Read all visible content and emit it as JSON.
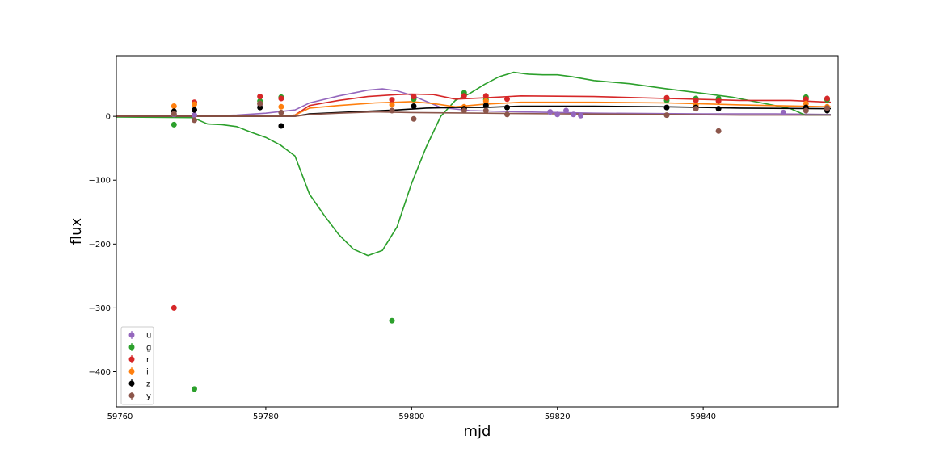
{
  "chart_data": {
    "type": "scatter",
    "title": "",
    "xlabel": "mjd",
    "ylabel": "flux",
    "xlim": [
      59759.5,
      59858.5
    ],
    "ylim": [
      -455,
      95
    ],
    "xticks": [
      59760,
      59780,
      59800,
      59820,
      59840
    ],
    "yticks": [
      -400,
      -300,
      -200,
      -100,
      0
    ],
    "grid": false,
    "legend_position": "lower-left",
    "series": [
      {
        "name": "u",
        "color": "#9467bd",
        "points": [
          {
            "x": 59767.4,
            "y": 3
          },
          {
            "x": 59770.2,
            "y": 2
          },
          {
            "x": 59779.2,
            "y": 19
          },
          {
            "x": 59819.0,
            "y": 7
          },
          {
            "x": 59820.0,
            "y": 3
          },
          {
            "x": 59821.2,
            "y": 9
          },
          {
            "x": 59822.2,
            "y": 3
          },
          {
            "x": 59823.2,
            "y": 1
          },
          {
            "x": 59851.0,
            "y": 6
          }
        ],
        "curve": [
          {
            "x": 59759.5,
            "y": 0
          },
          {
            "x": 59772,
            "y": 0.5
          },
          {
            "x": 59776,
            "y": 2
          },
          {
            "x": 59780,
            "y": 5
          },
          {
            "x": 59784,
            "y": 10
          },
          {
            "x": 59786,
            "y": 21
          },
          {
            "x": 59790,
            "y": 32
          },
          {
            "x": 59794,
            "y": 41
          },
          {
            "x": 59796,
            "y": 43
          },
          {
            "x": 59798,
            "y": 40
          },
          {
            "x": 59800,
            "y": 33
          },
          {
            "x": 59804,
            "y": 14
          },
          {
            "x": 59808,
            "y": 9
          },
          {
            "x": 59815,
            "y": 7
          },
          {
            "x": 59825,
            "y": 5
          },
          {
            "x": 59840,
            "y": 4
          },
          {
            "x": 59850,
            "y": 4
          },
          {
            "x": 59857.5,
            "y": 3
          }
        ]
      },
      {
        "name": "g",
        "color": "#2ca02c",
        "points": [
          {
            "x": 59767.4,
            "y": -13
          },
          {
            "x": 59770.2,
            "y": -427
          },
          {
            "x": 59779.2,
            "y": 24
          },
          {
            "x": 59782.1,
            "y": 30
          },
          {
            "x": 59797.3,
            "y": -320
          },
          {
            "x": 59800.3,
            "y": 27
          },
          {
            "x": 59807.2,
            "y": 37
          },
          {
            "x": 59810.2,
            "y": 26
          },
          {
            "x": 59835.0,
            "y": 25
          },
          {
            "x": 59839.0,
            "y": 28
          },
          {
            "x": 59842.1,
            "y": 28
          },
          {
            "x": 59854.1,
            "y": 30
          },
          {
            "x": 59857.0,
            "y": 26
          }
        ],
        "curve": [
          {
            "x": 59759.5,
            "y": -1
          },
          {
            "x": 59770,
            "y": -2
          },
          {
            "x": 59772,
            "y": -12
          },
          {
            "x": 59774,
            "y": -13
          },
          {
            "x": 59776,
            "y": -16
          },
          {
            "x": 59778,
            "y": -25
          },
          {
            "x": 59780,
            "y": -33
          },
          {
            "x": 59782,
            "y": -45
          },
          {
            "x": 59784,
            "y": -62
          },
          {
            "x": 59786,
            "y": -122
          },
          {
            "x": 59788,
            "y": -155
          },
          {
            "x": 59790,
            "y": -185
          },
          {
            "x": 59792,
            "y": -208
          },
          {
            "x": 59794,
            "y": -218
          },
          {
            "x": 59796,
            "y": -210
          },
          {
            "x": 59798,
            "y": -173
          },
          {
            "x": 59800,
            "y": -105
          },
          {
            "x": 59802,
            "y": -48
          },
          {
            "x": 59804,
            "y": 0
          },
          {
            "x": 59806,
            "y": 25
          },
          {
            "x": 59808,
            "y": 36
          },
          {
            "x": 59810,
            "y": 50
          },
          {
            "x": 59812,
            "y": 62
          },
          {
            "x": 59814,
            "y": 69
          },
          {
            "x": 59816,
            "y": 66
          },
          {
            "x": 59818,
            "y": 65
          },
          {
            "x": 59820,
            "y": 65
          },
          {
            "x": 59822,
            "y": 62
          },
          {
            "x": 59825,
            "y": 56
          },
          {
            "x": 59830,
            "y": 51
          },
          {
            "x": 59835,
            "y": 43
          },
          {
            "x": 59840,
            "y": 36
          },
          {
            "x": 59844,
            "y": 30
          },
          {
            "x": 59848,
            "y": 21
          },
          {
            "x": 59852,
            "y": 12
          },
          {
            "x": 59854,
            "y": 2
          },
          {
            "x": 59857.5,
            "y": 2
          }
        ]
      },
      {
        "name": "r",
        "color": "#d62728",
        "points": [
          {
            "x": 59767.4,
            "y": -300
          },
          {
            "x": 59770.2,
            "y": 22
          },
          {
            "x": 59779.2,
            "y": 31
          },
          {
            "x": 59782.1,
            "y": 28
          },
          {
            "x": 59797.3,
            "y": 26
          },
          {
            "x": 59800.3,
            "y": 31
          },
          {
            "x": 59807.2,
            "y": 32
          },
          {
            "x": 59810.2,
            "y": 32
          },
          {
            "x": 59813.1,
            "y": 27
          },
          {
            "x": 59835.0,
            "y": 29
          },
          {
            "x": 59839.0,
            "y": 25
          },
          {
            "x": 59842.1,
            "y": 24
          },
          {
            "x": 59854.1,
            "y": 27
          },
          {
            "x": 59857.0,
            "y": 28
          }
        ],
        "curve": [
          {
            "x": 59759.5,
            "y": 0
          },
          {
            "x": 59776,
            "y": 0
          },
          {
            "x": 59782,
            "y": 0
          },
          {
            "x": 59784,
            "y": 2
          },
          {
            "x": 59786,
            "y": 17
          },
          {
            "x": 59790,
            "y": 25
          },
          {
            "x": 59794,
            "y": 31
          },
          {
            "x": 59798,
            "y": 34
          },
          {
            "x": 59800,
            "y": 35
          },
          {
            "x": 59803,
            "y": 34
          },
          {
            "x": 59806,
            "y": 27
          },
          {
            "x": 59810,
            "y": 29
          },
          {
            "x": 59815,
            "y": 32
          },
          {
            "x": 59825,
            "y": 31
          },
          {
            "x": 59835,
            "y": 28
          },
          {
            "x": 59845,
            "y": 25
          },
          {
            "x": 59852,
            "y": 25
          },
          {
            "x": 59857.5,
            "y": 22
          }
        ]
      },
      {
        "name": "i",
        "color": "#ff7f0e",
        "points": [
          {
            "x": 59767.4,
            "y": 16
          },
          {
            "x": 59770.2,
            "y": 19
          },
          {
            "x": 59779.2,
            "y": 20
          },
          {
            "x": 59782.1,
            "y": 15
          },
          {
            "x": 59797.3,
            "y": 18
          },
          {
            "x": 59807.2,
            "y": 15
          },
          {
            "x": 59810.2,
            "y": 24
          },
          {
            "x": 59839.0,
            "y": 17
          },
          {
            "x": 59854.1,
            "y": 20
          },
          {
            "x": 59857.0,
            "y": 15
          }
        ],
        "curve": [
          {
            "x": 59759.5,
            "y": 0
          },
          {
            "x": 59782,
            "y": 0
          },
          {
            "x": 59784,
            "y": 2
          },
          {
            "x": 59786,
            "y": 13
          },
          {
            "x": 59790,
            "y": 17
          },
          {
            "x": 59795,
            "y": 21
          },
          {
            "x": 59800,
            "y": 23
          },
          {
            "x": 59803,
            "y": 20
          },
          {
            "x": 59806,
            "y": 15
          },
          {
            "x": 59810,
            "y": 19
          },
          {
            "x": 59815,
            "y": 22
          },
          {
            "x": 59825,
            "y": 22
          },
          {
            "x": 59835,
            "y": 21
          },
          {
            "x": 59845,
            "y": 18
          },
          {
            "x": 59857.5,
            "y": 15
          }
        ]
      },
      {
        "name": "z",
        "color": "#000000",
        "points": [
          {
            "x": 59767.4,
            "y": 8
          },
          {
            "x": 59770.2,
            "y": 10
          },
          {
            "x": 59779.2,
            "y": 14
          },
          {
            "x": 59782.1,
            "y": -15
          },
          {
            "x": 59800.3,
            "y": 16
          },
          {
            "x": 59807.2,
            "y": 12
          },
          {
            "x": 59810.2,
            "y": 17
          },
          {
            "x": 59813.1,
            "y": 14
          },
          {
            "x": 59835.0,
            "y": 14
          },
          {
            "x": 59839.0,
            "y": 14
          },
          {
            "x": 59842.1,
            "y": 12
          },
          {
            "x": 59854.1,
            "y": 14
          },
          {
            "x": 59857.0,
            "y": 9
          }
        ],
        "curve": [
          {
            "x": 59759.5,
            "y": 0
          },
          {
            "x": 59784,
            "y": 0
          },
          {
            "x": 59786,
            "y": 4
          },
          {
            "x": 59792,
            "y": 7
          },
          {
            "x": 59798,
            "y": 10
          },
          {
            "x": 59802,
            "y": 13
          },
          {
            "x": 59806,
            "y": 14
          },
          {
            "x": 59810,
            "y": 14
          },
          {
            "x": 59815,
            "y": 16
          },
          {
            "x": 59825,
            "y": 16
          },
          {
            "x": 59835,
            "y": 15
          },
          {
            "x": 59845,
            "y": 13
          },
          {
            "x": 59857.5,
            "y": 12
          }
        ]
      },
      {
        "name": "y",
        "color": "#8c564b",
        "points": [
          {
            "x": 59767.4,
            "y": 4
          },
          {
            "x": 59770.2,
            "y": -6
          },
          {
            "x": 59779.2,
            "y": 20
          },
          {
            "x": 59782.1,
            "y": 6
          },
          {
            "x": 59797.3,
            "y": 9
          },
          {
            "x": 59800.3,
            "y": -4
          },
          {
            "x": 59807.2,
            "y": 9
          },
          {
            "x": 59810.2,
            "y": 9
          },
          {
            "x": 59813.1,
            "y": 3
          },
          {
            "x": 59835.0,
            "y": 2
          },
          {
            "x": 59839.0,
            "y": 12
          },
          {
            "x": 59842.1,
            "y": -23
          },
          {
            "x": 59854.1,
            "y": 9
          },
          {
            "x": 59857.0,
            "y": 13
          }
        ],
        "curve": [
          {
            "x": 59759.5,
            "y": 0
          },
          {
            "x": 59784,
            "y": 0
          },
          {
            "x": 59786,
            "y": 3
          },
          {
            "x": 59790,
            "y": 5
          },
          {
            "x": 59795,
            "y": 7
          },
          {
            "x": 59800,
            "y": 6
          },
          {
            "x": 59810,
            "y": 5
          },
          {
            "x": 59820,
            "y": 4
          },
          {
            "x": 59835,
            "y": 3
          },
          {
            "x": 59845,
            "y": 2
          },
          {
            "x": 59857.5,
            "y": 2
          }
        ]
      }
    ]
  }
}
